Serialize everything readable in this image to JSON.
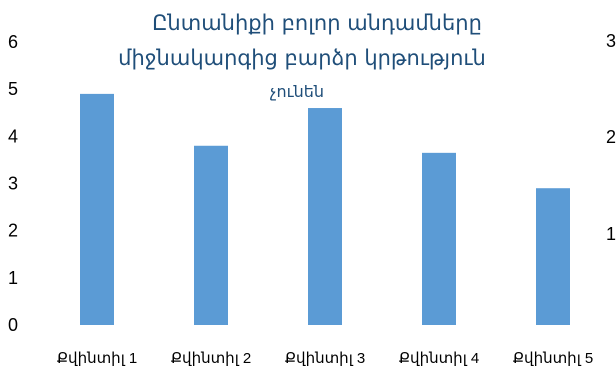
{
  "chart_data": {
    "type": "bar",
    "title_lines": [
      "Ընտանիքի բոլոր անդամները",
      "միջնակարգից բարձր կրթություն",
      "չունեն"
    ],
    "categories": [
      "Քվինտիլ 1",
      "Քվինտիլ 2",
      "Քվինտիլ 3",
      "Քվինտիլ 4",
      "Քվինտիլ 5"
    ],
    "values": [
      4.9,
      3.8,
      4.6,
      3.65,
      2.9
    ],
    "ylim": [
      0,
      6
    ],
    "yticks": [
      "0",
      "1",
      "2",
      "3",
      "4",
      "5",
      "6"
    ],
    "grid": false,
    "legend": "none",
    "bar_color": "#5b9bd5",
    "adjacent_chart_partial_ticks": [
      "3",
      "2",
      "1"
    ]
  }
}
